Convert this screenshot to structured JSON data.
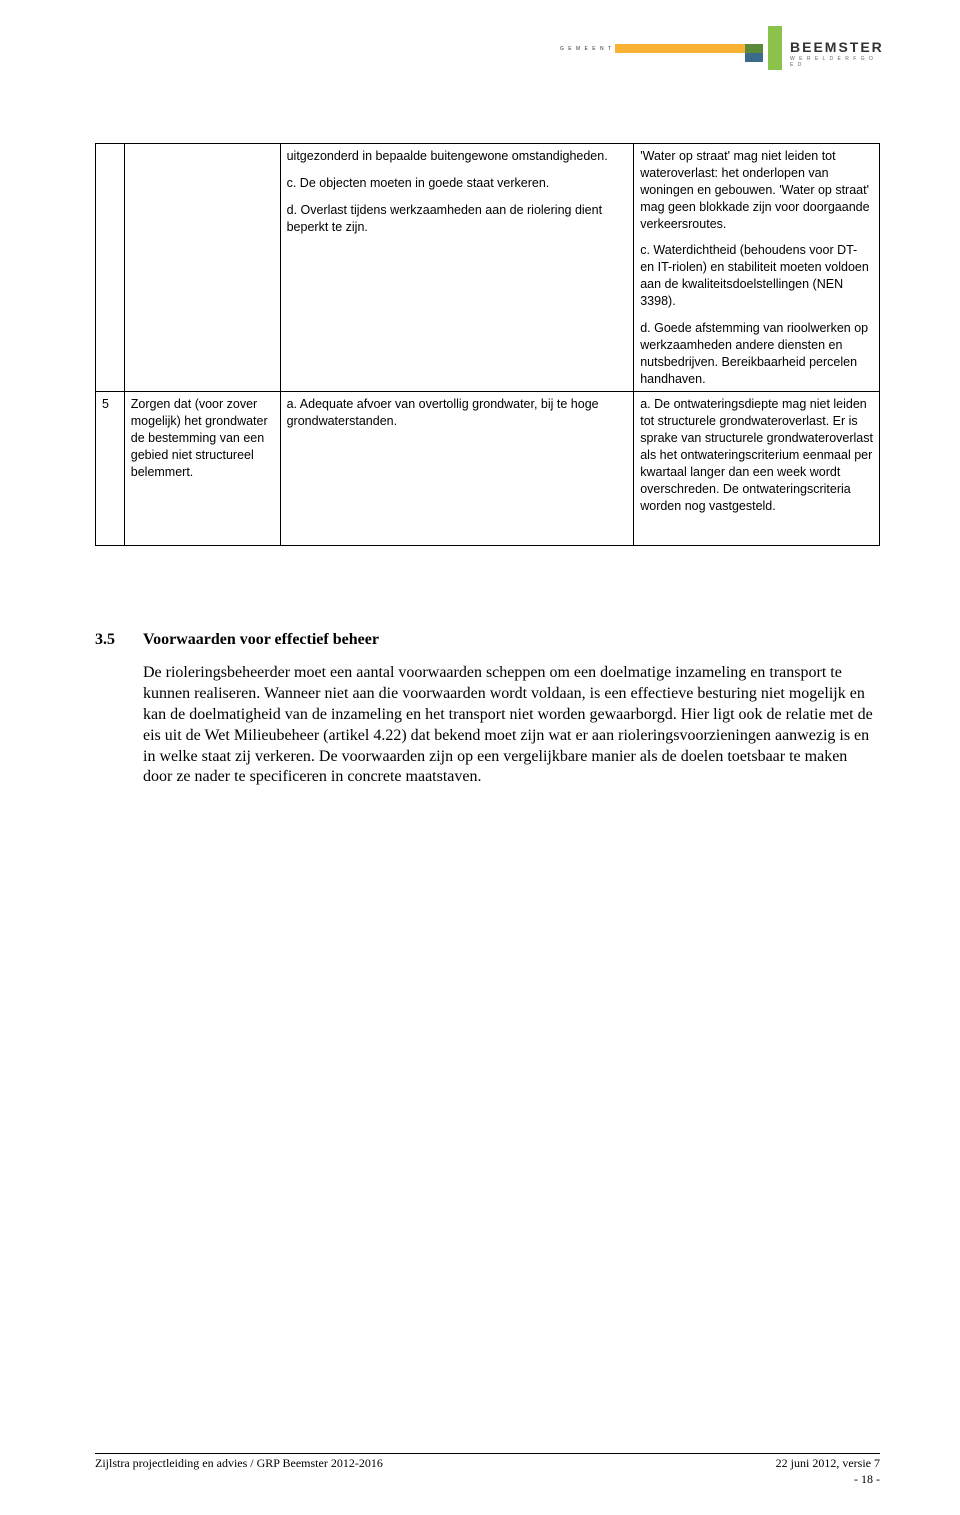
{
  "logo": {
    "left_text": "G E M E E N T E",
    "brand": "BEEMSTER",
    "subtitle": "W E R E L D E R F G O E D",
    "colors": {
      "yellow": "#f9b233",
      "midgreen": "#5a8a3a",
      "blue": "#3a6b8a",
      "green": "#8bc34a"
    }
  },
  "table": {
    "row1": {
      "col2_p1": "uitgezonderd in bepaalde buitengewone omstandigheden.",
      "col2_p2": "c. De objecten moeten in goede staat verkeren.",
      "col2_p3": "d. Overlast tijdens werkzaamheden aan de riolering dient beperkt te zijn.",
      "col3_p1": "'Water op straat' mag niet leiden tot wateroverlast: het onderlopen van woningen en gebouwen. 'Water op straat' mag geen blokkade zijn voor doorgaande verkeersroutes.",
      "col3_p2": "c. Waterdichtheid (behoudens voor DT- en IT-riolen) en stabiliteit moeten voldoen aan de kwaliteitsdoelstellingen (NEN 3398).",
      "col3_p3": "d. Goede afstemming van rioolwerken op werkzaamheden andere diensten en nutsbedrijven. Bereikbaarheid percelen handhaven."
    },
    "row2": {
      "num": "5",
      "col1": "Zorgen dat (voor zover mogelijk) het grondwater de bestemming van een gebied niet structureel belemmert.",
      "col2": "a. Adequate afvoer van overtollig grondwater, bij te hoge grondwaterstanden.",
      "col3": "a. De ontwateringsdiepte mag niet leiden tot structurele grondwateroverlast. Er is sprake van structurele grondwateroverlast als het ontwateringscriterium eenmaal per kwartaal langer dan een week wordt overschreden. De ontwateringscriteria worden nog vastgesteld."
    }
  },
  "section": {
    "number": "3.5",
    "title": "Voorwaarden voor effectief beheer",
    "body": "De rioleringsbeheerder moet een aantal voorwaarden scheppen om een doelmatige inzameling en transport te kunnen realiseren. Wanneer niet aan die voorwaarden wordt voldaan, is een effectieve besturing niet mogelijk en kan de doelmatigheid van de inzameling en het transport niet worden gewaarborgd. Hier ligt ook de relatie met de eis uit de Wet Milieubeheer (artikel 4.22) dat bekend moet zijn wat er aan rioleringsvoorzieningen aanwezig is en in welke staat zij verkeren. De voorwaarden zijn op een vergelijkbare manier als de doelen toetsbaar te maken door ze nader te specificeren in concrete maatstaven."
  },
  "footer": {
    "left": "Zijlstra projectleiding en advies / GRP Beemster 2012-2016",
    "right": "22 juni 2012, versie 7",
    "page": "- 18 -"
  }
}
